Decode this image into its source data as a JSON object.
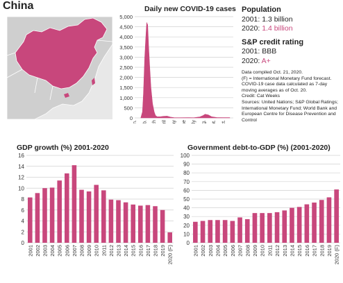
{
  "page": {
    "title": "China"
  },
  "colors": {
    "accent": "#c8477c",
    "map_land": "#cfcfcf",
    "map_sea": "#e9e9e9",
    "grid": "#d0d0d0"
  },
  "info": {
    "population_heading": "Population",
    "population": [
      {
        "year": "2001:",
        "value": "1.3 billion",
        "highlight": false
      },
      {
        "year": "2020:",
        "value": "1.4 billion",
        "highlight": true
      }
    ],
    "rating_heading": "S&P credit rating",
    "ratings": [
      {
        "year": "2001:",
        "value": "BBB",
        "highlight": false
      },
      {
        "year": "2020:",
        "value": "A+",
        "highlight": true
      }
    ],
    "notes": [
      "Data compiled Oct. 21, 2020.",
      "(F) = International Monetary Fund forecast. COVID-19 case data calculated as 7-day moving averages as of Oct. 20.",
      "Credit: Cat Weeks",
      "Sources: United Nations; S&P Global Ratings; International Monetary Fund; World Bank and European Centre for Disease Prevention and Control"
    ]
  },
  "chart_data": [
    {
      "type": "area",
      "title": "Daily new COVID-19 cases",
      "ylim": [
        0,
        5000
      ],
      "yticks": [
        "0",
        "500",
        "1,000",
        "1,500",
        "2,000",
        "2,500",
        "3,000",
        "3,500",
        "4,000",
        "4,500",
        "5,000"
      ],
      "xticks": [
        "Jan.",
        "Feb.",
        "March",
        "April",
        "May",
        "June",
        "July",
        "Aug.",
        "Sept.",
        "Oct."
      ],
      "x": [
        "Jan 20",
        "Jan 25",
        "Jan 28",
        "Feb 1",
        "Feb 4",
        "Feb 7",
        "Feb 10",
        "Feb 13",
        "Feb 16",
        "Feb 20",
        "Feb 25",
        "Mar 1",
        "Mar 5",
        "Mar 10",
        "Mar 20",
        "Mar 30",
        "Apr 10",
        "Apr 20",
        "May 1",
        "May 20",
        "Jun 15",
        "Jul 1",
        "Jul 20",
        "Jul 30",
        "Aug 5",
        "Aug 15",
        "Aug 25",
        "Sep 10",
        "Oct 1",
        "Oct 20"
      ],
      "values": [
        10,
        300,
        1200,
        3000,
        3900,
        4700,
        4600,
        3500,
        2600,
        1500,
        700,
        300,
        120,
        60,
        60,
        80,
        90,
        40,
        15,
        10,
        15,
        10,
        50,
        120,
        180,
        150,
        60,
        20,
        15,
        15
      ],
      "grid": true
    },
    {
      "type": "bar",
      "title": "GDP growth (%) 2001-2020",
      "ylim": [
        0,
        16
      ],
      "yticks": [
        "0",
        "2",
        "4",
        "6",
        "8",
        "10",
        "12",
        "14",
        "16"
      ],
      "categories": [
        "2001",
        "2002",
        "2003",
        "2004",
        "2005",
        "2006",
        "2007",
        "2008",
        "2009",
        "2010",
        "2011",
        "2012",
        "2013",
        "2014",
        "2015",
        "2016",
        "2017",
        "2018",
        "2019",
        "2020 (F)"
      ],
      "values": [
        8.3,
        9.1,
        10.0,
        10.1,
        11.4,
        12.7,
        14.2,
        9.7,
        9.4,
        10.6,
        9.6,
        7.9,
        7.8,
        7.4,
        7.0,
        6.8,
        6.9,
        6.7,
        6.0,
        1.9
      ],
      "grid": true
    },
    {
      "type": "bar",
      "title": "Government debt-to-GDP (%) (2001-2020)",
      "ylim": [
        0,
        100
      ],
      "yticks": [
        "0",
        "10",
        "20",
        "30",
        "40",
        "50",
        "60",
        "70",
        "80",
        "90",
        "100"
      ],
      "categories": [
        "2001",
        "2002",
        "2003",
        "2004",
        "2005",
        "2006",
        "2007",
        "2008",
        "2009",
        "2010",
        "2011",
        "2012",
        "2013",
        "2014",
        "2015",
        "2016",
        "2017",
        "2018",
        "2019",
        "2020 (F)"
      ],
      "values": [
        24,
        25,
        26,
        26,
        26,
        25,
        29,
        27,
        34,
        34,
        34,
        35,
        37,
        40,
        41,
        44,
        46,
        49,
        52,
        61
      ],
      "grid": true
    }
  ]
}
